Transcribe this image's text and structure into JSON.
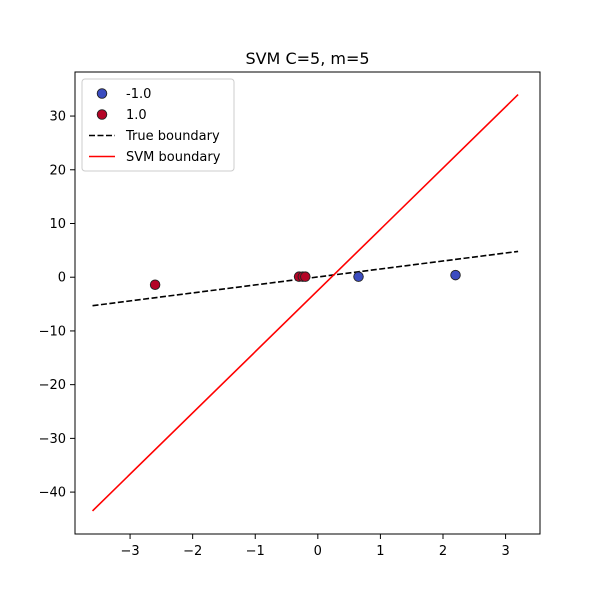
{
  "chart_data": {
    "type": "scatter",
    "title": "SVM C=5, m=5",
    "xlabel": "",
    "ylabel": "",
    "xlim": [
      -3.88,
      3.55
    ],
    "ylim": [
      -47.8,
      38.2
    ],
    "x_ticks": [
      -3,
      -2,
      -1,
      0,
      1,
      2,
      3
    ],
    "y_ticks": [
      -40,
      -30,
      -20,
      -10,
      0,
      10,
      20,
      30
    ],
    "grid": false,
    "legend_position": "upper-left",
    "series": [
      {
        "name": "-1.0",
        "kind": "points",
        "color": "#3b4cc0",
        "points": [
          [
            0.65,
            0.1
          ],
          [
            2.2,
            0.4
          ]
        ]
      },
      {
        "name": "1.0",
        "kind": "points",
        "color": "#b40426",
        "points": [
          [
            -2.6,
            -1.4
          ],
          [
            -0.3,
            0.1
          ],
          [
            -0.24,
            0.1
          ],
          [
            -0.2,
            0.1
          ]
        ]
      },
      {
        "name": "True boundary",
        "kind": "line",
        "style": "dashed",
        "color": "#000000",
        "points": [
          [
            -3.6,
            -5.3
          ],
          [
            3.2,
            4.8
          ]
        ]
      },
      {
        "name": "SVM boundary",
        "kind": "line",
        "style": "solid",
        "color": "#ff0000",
        "points": [
          [
            -3.6,
            -43.5
          ],
          [
            3.2,
            34.0
          ]
        ]
      }
    ]
  }
}
